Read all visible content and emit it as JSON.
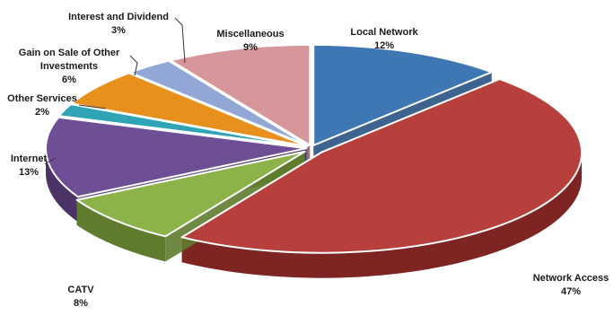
{
  "chart_data": {
    "type": "pie",
    "style": "3d-exploded",
    "title": "",
    "slices": [
      {
        "label": "Local Network",
        "value": 12,
        "pct_text": "12%",
        "color": "#3F76B4",
        "side": "#2A5283"
      },
      {
        "label": "Network Access",
        "value": 47,
        "pct_text": "47%",
        "color": "#B7403C",
        "side": "#7E2523"
      },
      {
        "label": "CATV",
        "value": 8,
        "pct_text": "8%",
        "color": "#8CB24A",
        "side": "#5F7C2E"
      },
      {
        "label": "Internet",
        "value": 13,
        "pct_text": "13%",
        "color": "#6E4E94",
        "side": "#4B3368"
      },
      {
        "label": "Other Services",
        "value": 2,
        "pct_text": "2%",
        "color": "#2FA4B7",
        "side": "#1E7482"
      },
      {
        "label": "Gain on Sale of Other Investments",
        "label_lines": [
          "Gain on Sale of Other",
          "Investments"
        ],
        "value": 6,
        "pct_text": "6%",
        "color": "#E8901E",
        "side": "#A8640F"
      },
      {
        "label": "Interest and Dividend",
        "value": 3,
        "pct_text": "3%",
        "color": "#93A7D6",
        "side": "#67789F"
      },
      {
        "label": "Miscellaneous",
        "value": 9,
        "pct_text": "9%",
        "color": "#D7969A",
        "side": "#9E6669"
      }
    ]
  }
}
